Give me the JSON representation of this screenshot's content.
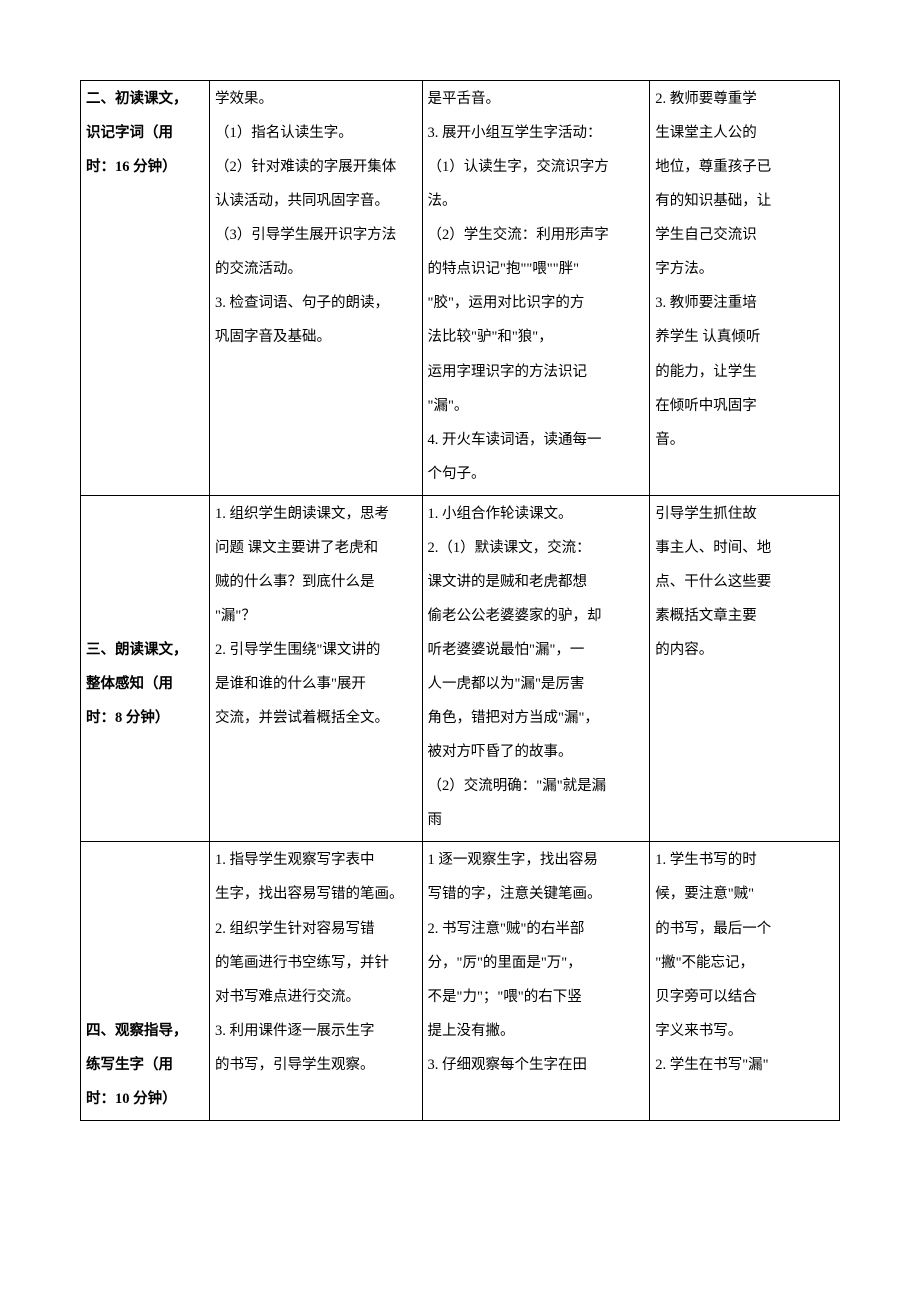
{
  "rows": [
    {
      "col1_bold": true,
      "col1": [
        "二、初读课文，",
        "识记字词（用",
        "时：16 分钟）"
      ],
      "col2": [
        "学效果。",
        "（1）指名认读生字。",
        "（2）针对难读的字展开集体",
        "认读活动，共同巩固字音。",
        "（3）引导学生展开识字方法",
        "的交流活动。",
        "3. 检查词语、句子的朗读，",
        "巩固字音及基础。"
      ],
      "col3": [
        "是平舌音。",
        "3. 展开小组互学生字活动：",
        "（1）认读生字，交流识字方",
        "法。",
        "（2）学生交流：利用形声字",
        "的特点识记\"抱\"\"喂\"\"胖\"",
        "\"胶\"，运用对比识字的方",
        "法比较\"驴\"和\"狼\"，",
        "运用字理识字的方法识记",
        "\"漏\"。",
        "4. 开火车读词语，读通每一",
        "个句子。"
      ],
      "col4": [
        "2. 教师要尊重学",
        "生课堂主人公的",
        "地位，尊重孩子已",
        "有的知识基础，让",
        "学生自己交流识",
        "字方法。",
        "3. 教师要注重培",
        "养学生 认真倾听",
        "的能力，让学生",
        "在倾听中巩固字",
        "音。"
      ]
    },
    {
      "col1_bold": true,
      "col1": [
        "",
        "",
        "",
        "",
        "三、朗读课文，",
        "整体感知（用",
        "时：8 分钟）"
      ],
      "col2": [
        "1. 组织学生朗读课文，思考",
        "问题 课文主要讲了老虎和",
        "贼的什么事？到底什么是",
        "\"漏\"？",
        "2. 引导学生围绕\"课文讲的",
        "是谁和谁的什么事\"展开",
        "交流，并尝试着概括全文。"
      ],
      "col3": [
        "1. 小组合作轮读课文。",
        "2.（1）默读课文，交流：",
        "课文讲的是贼和老虎都想",
        "偷老公公老婆婆家的驴，却",
        "听老婆婆说最怕\"漏\"，一",
        "人一虎都以为\"漏\"是厉害",
        "角色，错把对方当成\"漏\"，",
        "被对方吓昏了的故事。",
        "（2）交流明确：\"漏\"就是漏",
        "雨"
      ],
      "col4": [
        "引导学生抓住故",
        "事主人、时间、地",
        "点、干什么这些要",
        "素概括文章主要",
        "的内容。"
      ]
    },
    {
      "col1_bold": true,
      "col1": [
        "",
        "",
        "",
        "",
        "",
        "四、观察指导，",
        "练写生字（用",
        "时：10 分钟）"
      ],
      "col2": [
        "1. 指导学生观察写字表中",
        "生字，找出容易写错的笔画。",
        "2. 组织学生针对容易写错",
        "的笔画进行书空练写，并针",
        "对书写难点进行交流。",
        "3. 利用课件逐一展示生字",
        "的书写，引导学生观察。"
      ],
      "col3": [
        "1 逐一观察生字，找出容易",
        "写错的字，注意关键笔画。",
        "2. 书写注意\"贼\"的右半部",
        "分，\"厉\"的里面是\"万\"，",
        "不是\"力\"；\"喂\"的右下竖",
        "提上没有撇。",
        "3. 仔细观察每个生字在田"
      ],
      "col4": [
        "1. 学生书写的时",
        "候，要注意\"贼\"",
        "的书写，最后一个",
        "\"撇\"不能忘记，",
        "贝字旁可以结合",
        "字义来书写。",
        "2. 学生在书写\"漏\""
      ]
    }
  ]
}
